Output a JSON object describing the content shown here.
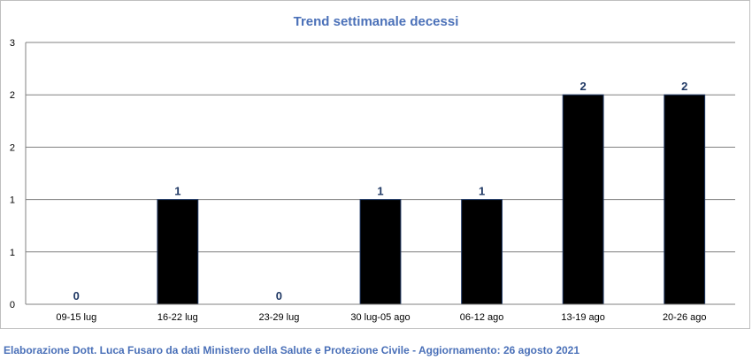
{
  "chart_data": {
    "type": "bar",
    "title": "Trend settimanale decessi",
    "categories": [
      "09-15 lug",
      "16-22 lug",
      "23-29 lug",
      "30 lug-05 ago",
      "06-12 ago",
      "13-19 ago",
      "20-26 ago"
    ],
    "values": [
      0,
      1,
      0,
      1,
      1,
      2,
      2
    ],
    "data_labels": [
      "0",
      "1",
      "0",
      "1",
      "1",
      "2",
      "2"
    ],
    "y_tick_labels": [
      "0",
      "1",
      "1",
      "2",
      "2",
      "3"
    ],
    "ylim": [
      0,
      2.5
    ],
    "grid": true,
    "xlabel": "",
    "ylabel": "",
    "bar_color": "#000000",
    "label_color": "#1f3864",
    "title_color": "#4a70b8"
  },
  "footer": {
    "note": "Elaborazione Dott. Luca Fusaro da dati Ministero della Salute e Protezione Civile - Aggiornamento: 26 agosto 2021"
  }
}
